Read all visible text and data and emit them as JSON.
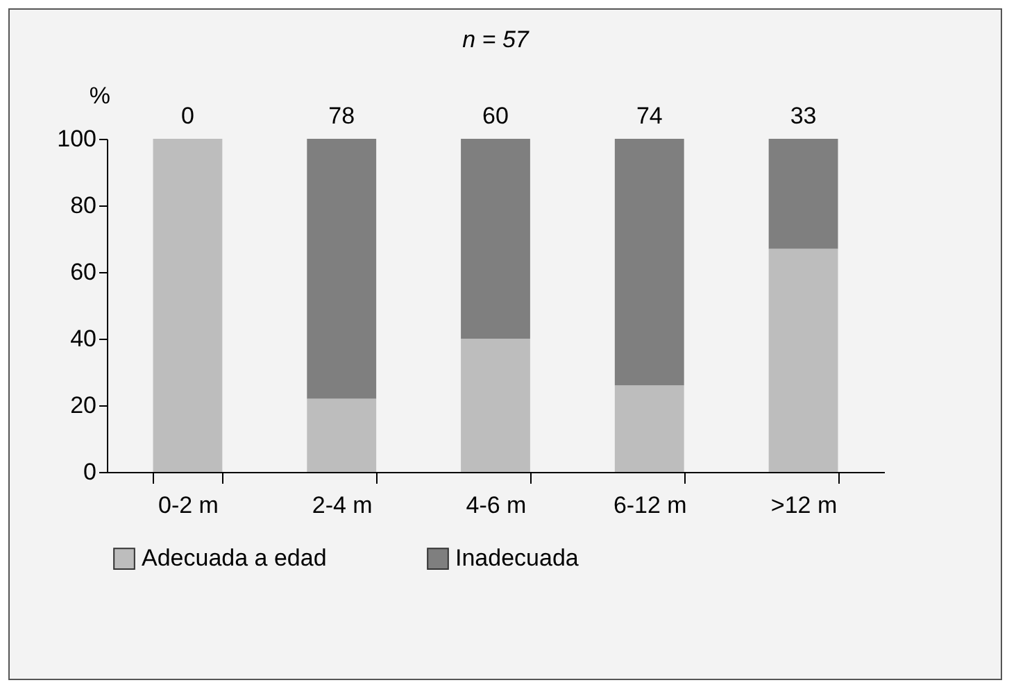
{
  "chart_data": {
    "type": "bar",
    "title": "n = 57",
    "ylabel": "%",
    "categories": [
      "0-2 m",
      "2-4 m",
      "4-6 m",
      "6-12 m",
      ">12 m"
    ],
    "stacked": true,
    "ylim": [
      0,
      100
    ],
    "yticks": [
      0,
      20,
      40,
      60,
      80,
      100
    ],
    "grid": false,
    "legend": "bottom",
    "series": [
      {
        "name": "Adecuada a edad",
        "color": "#bdbdbd",
        "values": [
          100,
          22,
          40,
          26,
          67
        ]
      },
      {
        "name": "Inadecuada",
        "color": "#7f7f7f",
        "values": [
          0,
          78,
          60,
          74,
          33
        ],
        "value_labels": [
          "0",
          "78",
          "60",
          "74",
          "33"
        ]
      }
    ]
  }
}
